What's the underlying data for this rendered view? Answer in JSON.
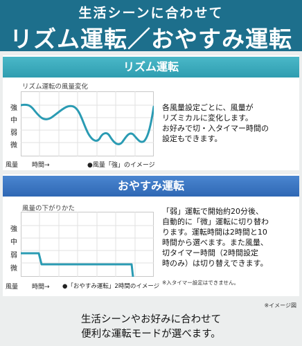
{
  "header": {
    "subtitle": "生活シーンに合わせて",
    "title": "リズム運転／おやすみ運転"
  },
  "rhythm": {
    "band_label": "リズム運転",
    "chart_title": "リズム運転の風量変化",
    "levels": [
      "強",
      "中",
      "弱",
      "微"
    ],
    "x_left": "風量",
    "x_time": "時間→",
    "legend": "●風量「強」のイメージ",
    "desc": [
      "各風量設定ごとに、風量が",
      "リズミカルに変化します。",
      "お好みで切・入タイマー時間の",
      "設定もできます。"
    ]
  },
  "sleep": {
    "band_label": "おやすみ運転",
    "chart_title": "風量の下がりかた",
    "levels": [
      "強",
      "中",
      "弱",
      "微"
    ],
    "x_left": "風量",
    "x_time": "時間→",
    "legend": "●「おやすみ運転」2時間のイメージ",
    "desc": [
      "「弱」運転で開始約20分後、",
      "自動的に「微」運転に切り替わ",
      "ります。運転時間は2時間と10",
      "時間から選べます。また風量、",
      "切タイマー時間（2時間設定",
      "時のみ）は切り替えできます。"
    ],
    "note": "※入タイマー設定はできません。"
  },
  "footer": {
    "image_note": "※イメージ図",
    "line1": "生活シーンやお好みに合わせて",
    "line2": "便利な運転モードが選べます。"
  },
  "colors": {
    "header_bg": "#1d6f8c",
    "rhythm_band": "#3aaabc",
    "sleep_band": "#3a78c4",
    "curve": "#2a9bb3"
  }
}
